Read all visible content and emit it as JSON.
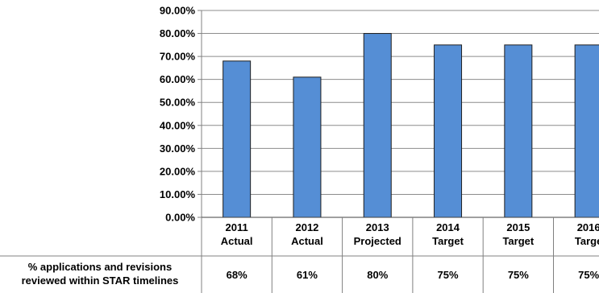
{
  "chart_data": {
    "type": "bar",
    "categories": [
      [
        "2011",
        "Actual"
      ],
      [
        "2012",
        "Actual"
      ],
      [
        "2013",
        "Projected"
      ],
      [
        "2014",
        "Target"
      ],
      [
        "2015",
        "Target"
      ],
      [
        "2016",
        "Targe"
      ]
    ],
    "values": [
      68,
      61,
      80,
      75,
      75,
      75
    ],
    "ylim": [
      0,
      90
    ],
    "y_ticks": [
      "0.00%",
      "10.00%",
      "20.00%",
      "30.00%",
      "40.00%",
      "50.00%",
      "60.00%",
      "70.00%",
      "80.00%",
      "90.00%"
    ],
    "grid": true,
    "bar_color": "#558ed5",
    "bar_border": "#1f1f1f",
    "table": {
      "row_label": [
        "% applications and revisions",
        "reviewed within STAR timelines"
      ],
      "cells": [
        "68%",
        "61%",
        "80%",
        "75%",
        "75%",
        "75%"
      ]
    }
  }
}
